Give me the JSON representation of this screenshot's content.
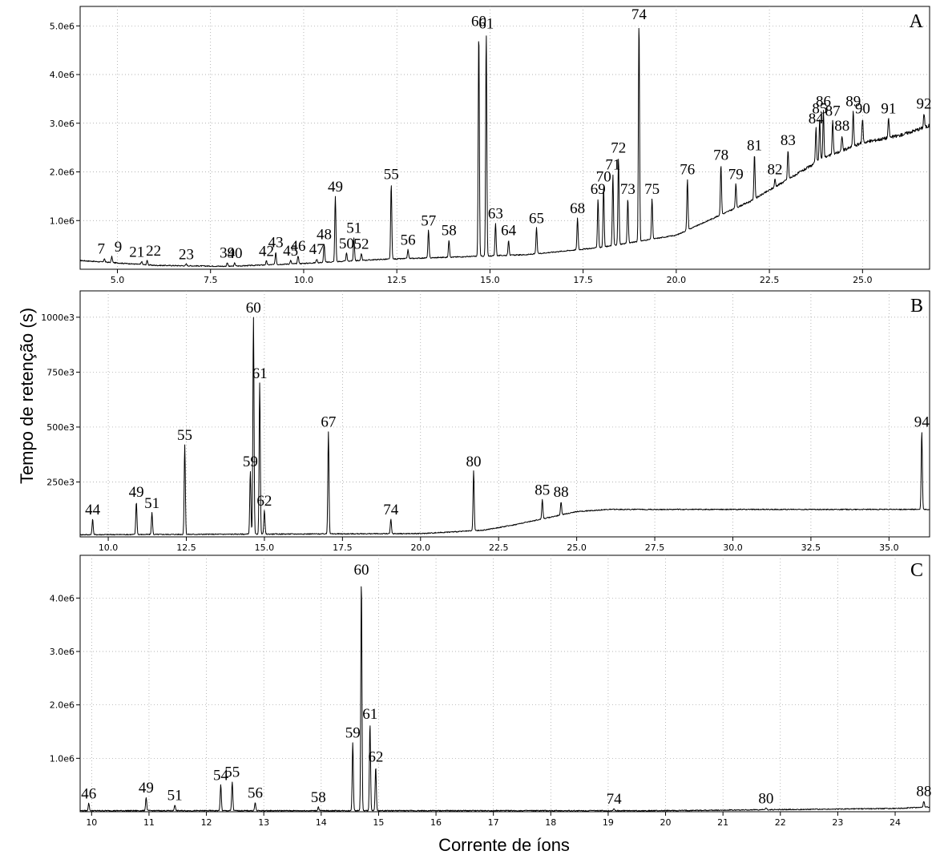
{
  "y_axis_title": "Tempo de retenção (s)",
  "x_axis_title": "Corrente de íons",
  "colors": {
    "trace": "#000000",
    "grid": "#9a9a9a",
    "background": "#ffffff"
  },
  "chart_data": [
    {
      "type": "line",
      "title": "A",
      "xlim": [
        4.0,
        26.8
      ],
      "ylim": [
        0,
        5400000
      ],
      "grid": true,
      "x_ticks": [
        5.0,
        7.5,
        10.0,
        12.5,
        15.0,
        17.5,
        20.0,
        22.5,
        25.0
      ],
      "x_tick_labels": [
        "5.0",
        "7.5",
        "10.0",
        "12.5",
        "15.0",
        "17.5",
        "20.0",
        "22.5",
        "25.0"
      ],
      "y_ticks": [
        1000000,
        2000000,
        3000000,
        4000000,
        5000000
      ],
      "y_tick_labels": [
        "1.0e6",
        "2.0e6",
        "3.0e6",
        "4.0e6",
        "5.0e6"
      ],
      "baseline": [
        [
          4.0,
          180000
        ],
        [
          6.0,
          80000
        ],
        [
          8.0,
          60000
        ],
        [
          10.0,
          120000
        ],
        [
          12.0,
          200000
        ],
        [
          14.0,
          250000
        ],
        [
          16.0,
          300000
        ],
        [
          18.0,
          450000
        ],
        [
          20.0,
          700000
        ],
        [
          22.0,
          1400000
        ],
        [
          24.0,
          2300000
        ],
        [
          25.0,
          2600000
        ],
        [
          26.0,
          2750000
        ],
        [
          26.8,
          2950000
        ]
      ],
      "peaks": [
        {
          "label": "7",
          "x": 4.65,
          "y": 220000
        },
        {
          "label": "9",
          "x": 4.85,
          "y": 260000
        },
        {
          "label": "21",
          "x": 5.65,
          "y": 160000
        },
        {
          "label": "22",
          "x": 5.8,
          "y": 180000
        },
        {
          "label": "23",
          "x": 6.85,
          "y": 110000
        },
        {
          "label": "39",
          "x": 7.95,
          "y": 140000
        },
        {
          "label": "40",
          "x": 8.15,
          "y": 130000
        },
        {
          "label": "42",
          "x": 9.0,
          "y": 170000
        },
        {
          "label": "43",
          "x": 9.25,
          "y": 350000
        },
        {
          "label": "45",
          "x": 9.65,
          "y": 180000
        },
        {
          "label": "46",
          "x": 9.85,
          "y": 280000
        },
        {
          "label": "47",
          "x": 10.35,
          "y": 210000
        },
        {
          "label": "48",
          "x": 10.55,
          "y": 520000
        },
        {
          "label": "49",
          "x": 10.85,
          "y": 1500000
        },
        {
          "label": "50",
          "x": 11.15,
          "y": 330000
        },
        {
          "label": "51",
          "x": 11.35,
          "y": 650000
        },
        {
          "label": "52",
          "x": 11.55,
          "y": 320000
        },
        {
          "label": "55",
          "x": 12.35,
          "y": 1750000
        },
        {
          "label": "56",
          "x": 12.8,
          "y": 400000
        },
        {
          "label": "57",
          "x": 13.35,
          "y": 800000
        },
        {
          "label": "58",
          "x": 13.9,
          "y": 600000
        },
        {
          "label": "60",
          "x": 14.7,
          "y": 4900000
        },
        {
          "label": "61",
          "x": 14.9,
          "y": 4850000
        },
        {
          "label": "63",
          "x": 15.15,
          "y": 950000
        },
        {
          "label": "64",
          "x": 15.5,
          "y": 600000
        },
        {
          "label": "65",
          "x": 16.25,
          "y": 850000
        },
        {
          "label": "68",
          "x": 17.35,
          "y": 1050000
        },
        {
          "label": "69",
          "x": 17.9,
          "y": 1450000
        },
        {
          "label": "70",
          "x": 18.05,
          "y": 1700000
        },
        {
          "label": "71",
          "x": 18.3,
          "y": 1950000
        },
        {
          "label": "72",
          "x": 18.45,
          "y": 2300000
        },
        {
          "label": "73",
          "x": 18.7,
          "y": 1450000
        },
        {
          "label": "74",
          "x": 19.0,
          "y": 5100000
        },
        {
          "label": "75",
          "x": 19.35,
          "y": 1450000
        },
        {
          "label": "76",
          "x": 20.3,
          "y": 1850000
        },
        {
          "label": "78",
          "x": 21.2,
          "y": 2150000
        },
        {
          "label": "79",
          "x": 21.6,
          "y": 1750000
        },
        {
          "label": "81",
          "x": 22.1,
          "y": 2350000
        },
        {
          "label": "82",
          "x": 22.65,
          "y": 1850000
        },
        {
          "label": "83",
          "x": 23.0,
          "y": 2450000
        },
        {
          "label": "84",
          "x": 23.75,
          "y": 2900000
        },
        {
          "label": "85",
          "x": 23.85,
          "y": 3100000
        },
        {
          "label": "86",
          "x": 23.95,
          "y": 3250000
        },
        {
          "label": "87",
          "x": 24.2,
          "y": 3050000
        },
        {
          "label": "88",
          "x": 24.45,
          "y": 2750000
        },
        {
          "label": "89",
          "x": 24.75,
          "y": 3250000
        },
        {
          "label": "90",
          "x": 25.0,
          "y": 3100000
        },
        {
          "label": "91",
          "x": 25.7,
          "y": 3100000
        },
        {
          "label": "92",
          "x": 26.65,
          "y": 3200000
        }
      ],
      "label_offsets": {
        "7": [
          -4,
          0
        ],
        "9": [
          8,
          0
        ],
        "21": [
          -6,
          0
        ],
        "22": [
          8,
          0
        ]
      }
    },
    {
      "type": "line",
      "title": "B",
      "xlim": [
        9.1,
        36.3
      ],
      "ylim": [
        0,
        1120000
      ],
      "grid": true,
      "x_ticks": [
        10.0,
        12.5,
        15.0,
        17.5,
        20.0,
        22.5,
        25.0,
        27.5,
        30.0,
        32.5,
        35.0
      ],
      "x_tick_labels": [
        "10.0",
        "12.5",
        "15.0",
        "17.5",
        "20.0",
        "22.5",
        "25.0",
        "27.5",
        "30.0",
        "32.5",
        "35.0"
      ],
      "y_ticks": [
        250000,
        500000,
        750000,
        1000000
      ],
      "y_tick_labels": [
        "250e3",
        "500e3",
        "750e3",
        "1000e3"
      ],
      "baseline": [
        [
          9.1,
          10000
        ],
        [
          20.0,
          15000
        ],
        [
          22.0,
          30000
        ],
        [
          23.0,
          55000
        ],
        [
          24.0,
          85000
        ],
        [
          25.0,
          115000
        ],
        [
          26.0,
          125000
        ],
        [
          36.3,
          125000
        ]
      ],
      "peaks": [
        {
          "label": "44",
          "x": 9.5,
          "y": 80000
        },
        {
          "label": "49",
          "x": 10.9,
          "y": 160000
        },
        {
          "label": "51",
          "x": 11.4,
          "y": 110000
        },
        {
          "label": "55",
          "x": 12.45,
          "y": 420000
        },
        {
          "label": "59",
          "x": 14.55,
          "y": 300000
        },
        {
          "label": "60",
          "x": 14.65,
          "y": 1000000
        },
        {
          "label": "61",
          "x": 14.85,
          "y": 700000
        },
        {
          "label": "62",
          "x": 15.0,
          "y": 120000
        },
        {
          "label": "67",
          "x": 17.05,
          "y": 480000
        },
        {
          "label": "74",
          "x": 19.05,
          "y": 80000
        },
        {
          "label": "80",
          "x": 21.7,
          "y": 300000
        },
        {
          "label": "85",
          "x": 23.9,
          "y": 170000
        },
        {
          "label": "88",
          "x": 24.5,
          "y": 160000
        },
        {
          "label": "94",
          "x": 36.05,
          "y": 480000
        }
      ]
    },
    {
      "type": "line",
      "title": "C",
      "xlim": [
        9.8,
        24.6
      ],
      "ylim": [
        0,
        4800000
      ],
      "grid": true,
      "x_ticks": [
        10,
        11,
        12,
        13,
        14,
        15,
        16,
        17,
        18,
        19,
        20,
        21,
        22,
        23,
        24
      ],
      "x_tick_labels": [
        "10",
        "11",
        "12",
        "13",
        "14",
        "15",
        "16",
        "17",
        "18",
        "19",
        "20",
        "21",
        "22",
        "23",
        "24"
      ],
      "y_ticks": [
        1000000,
        2000000,
        3000000,
        4000000
      ],
      "y_tick_labels": [
        "1.0e6",
        "2.0e6",
        "3.0e6",
        "4.0e6"
      ],
      "baseline": [
        [
          9.8,
          20000
        ],
        [
          20.0,
          20000
        ],
        [
          24.0,
          60000
        ],
        [
          24.6,
          90000
        ]
      ],
      "peaks": [
        {
          "label": "46",
          "x": 9.95,
          "y": 160000
        },
        {
          "label": "49",
          "x": 10.95,
          "y": 270000
        },
        {
          "label": "51",
          "x": 11.45,
          "y": 130000
        },
        {
          "label": "54",
          "x": 12.25,
          "y": 500000
        },
        {
          "label": "55",
          "x": 12.45,
          "y": 560000
        },
        {
          "label": "56",
          "x": 12.85,
          "y": 170000
        },
        {
          "label": "58",
          "x": 13.95,
          "y": 90000
        },
        {
          "label": "59",
          "x": 14.55,
          "y": 1300000
        },
        {
          "label": "60",
          "x": 14.7,
          "y": 4350000
        },
        {
          "label": "61",
          "x": 14.85,
          "y": 1650000
        },
        {
          "label": "62",
          "x": 14.95,
          "y": 850000
        },
        {
          "label": "74",
          "x": 19.1,
          "y": 60000
        },
        {
          "label": "80",
          "x": 21.75,
          "y": 70000
        },
        {
          "label": "88",
          "x": 24.5,
          "y": 200000
        }
      ]
    }
  ]
}
